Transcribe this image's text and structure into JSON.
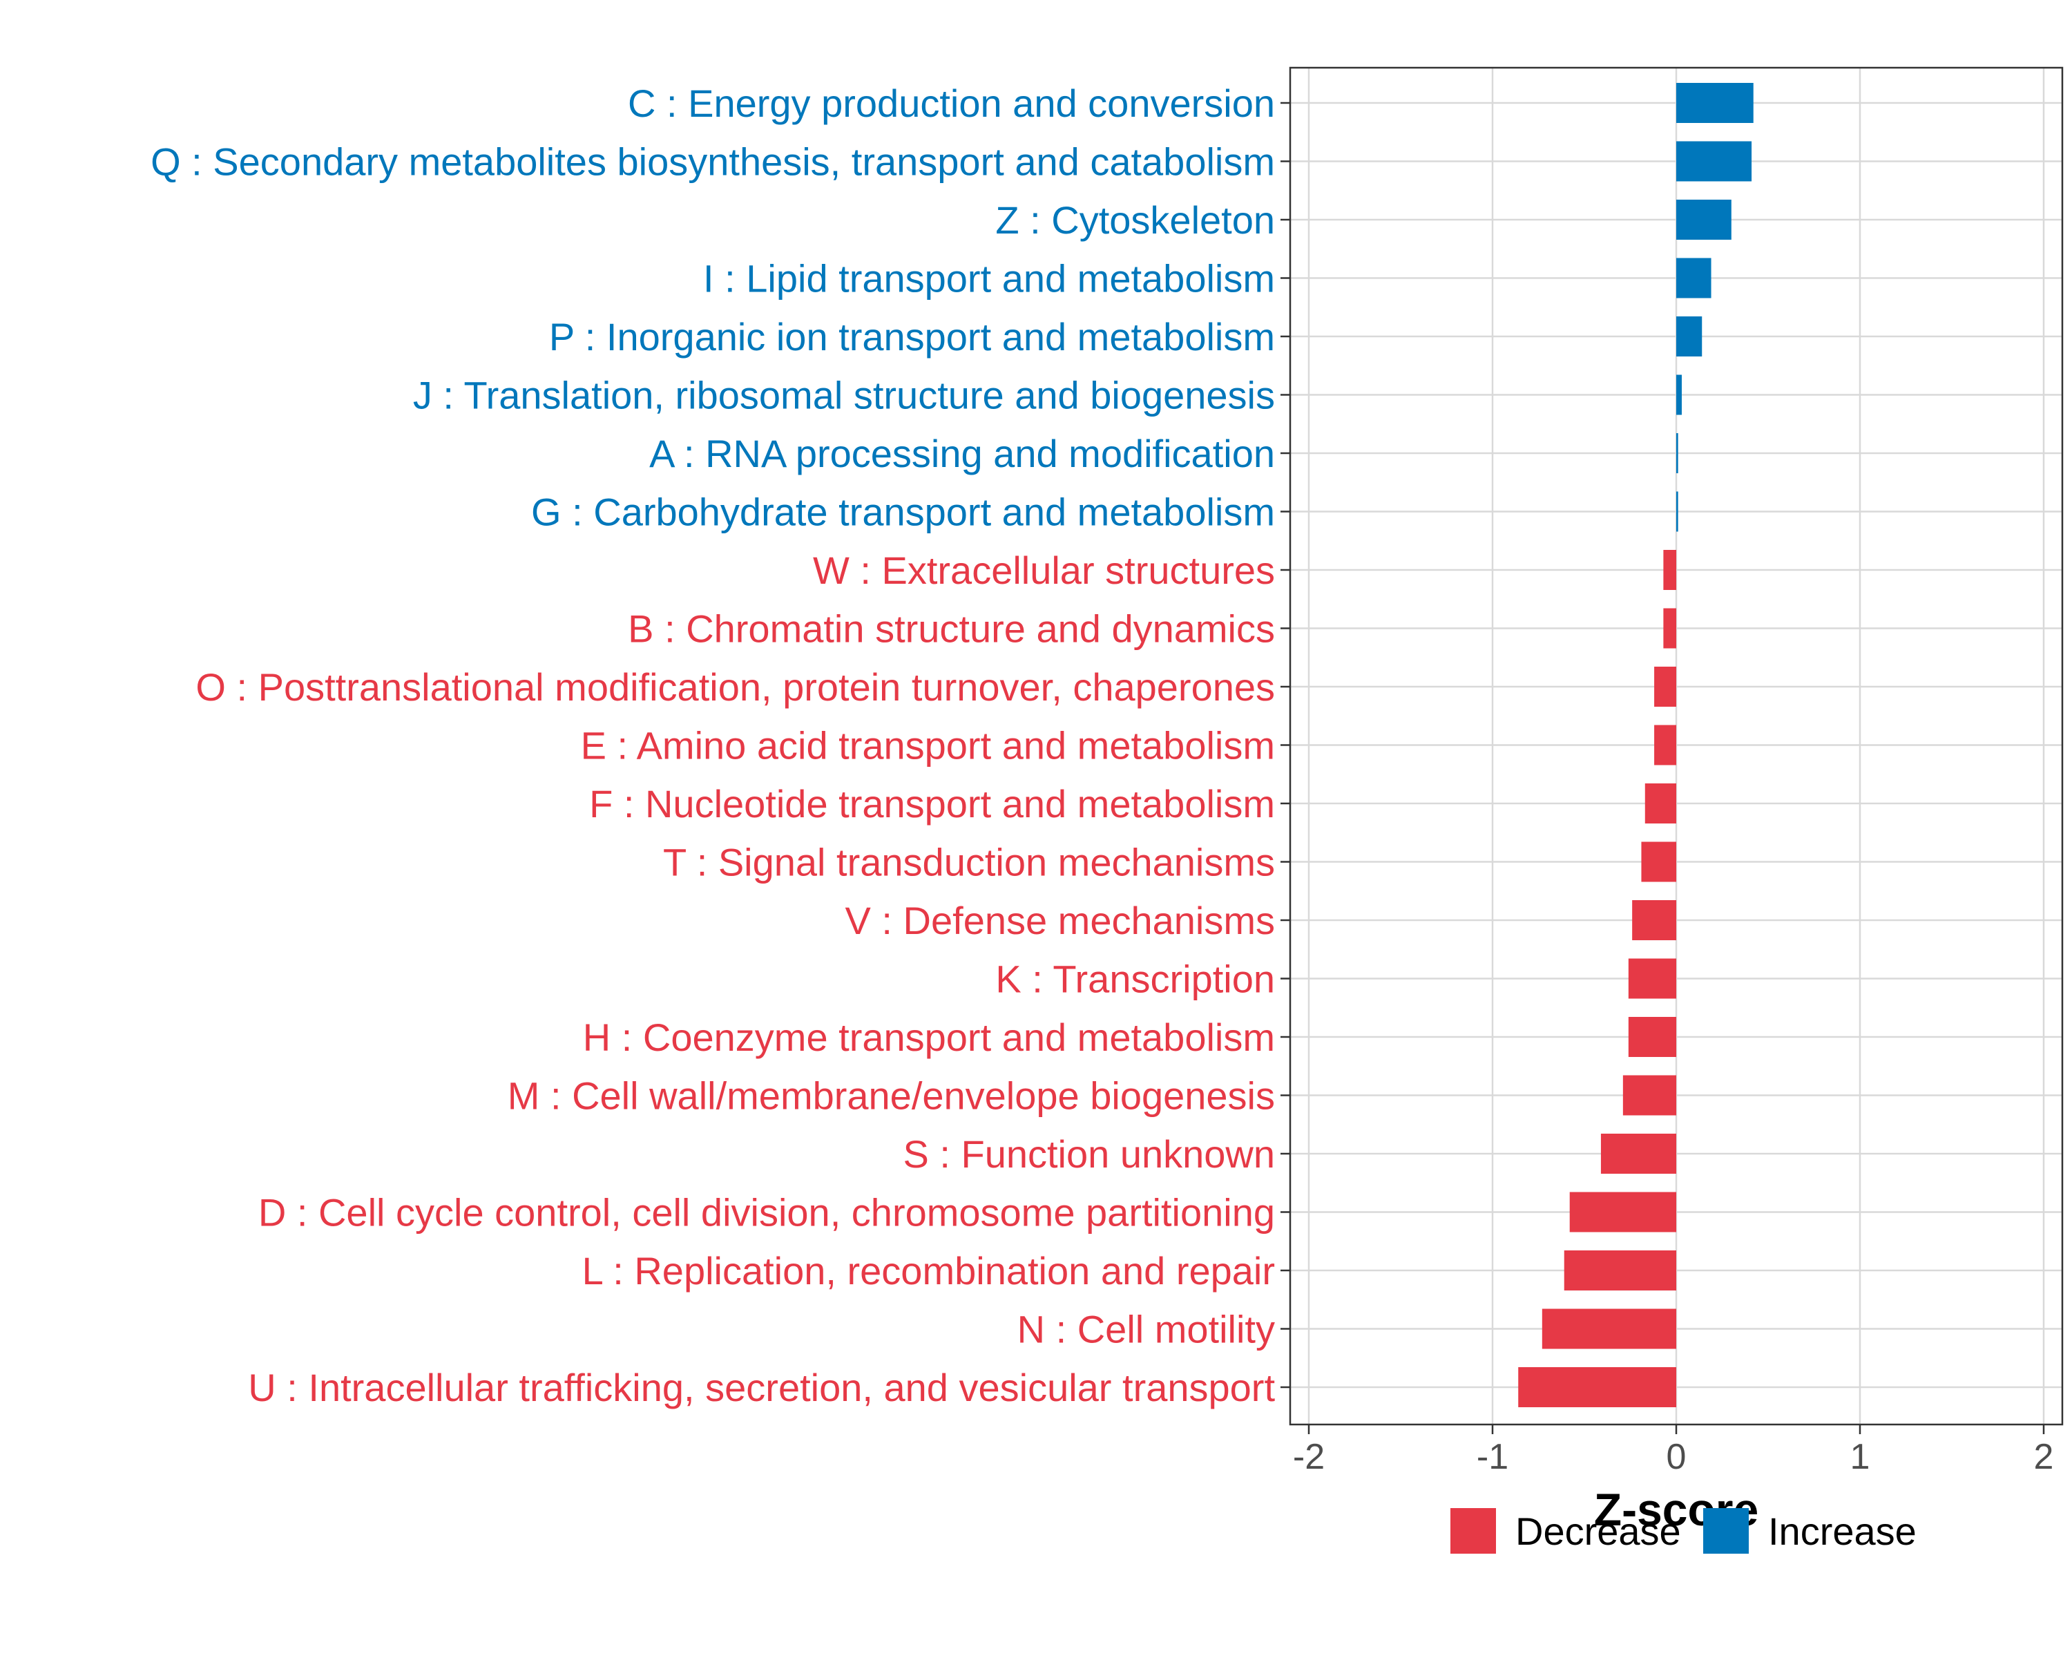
{
  "chart_data": {
    "type": "bar",
    "orientation": "horizontal",
    "title": "",
    "xlabel": "Z-score",
    "ylabel": "",
    "xlim": [
      -2,
      2
    ],
    "xticks": [
      -2,
      -1,
      0,
      1,
      2
    ],
    "xtick_labels": [
      "-2",
      "-1",
      "0",
      "1",
      "2"
    ],
    "grid": true,
    "legend_position": "bottom",
    "colors": {
      "Decrease": "#e63946",
      "Increase": "#0077bb"
    },
    "legend": [
      {
        "name": "Decrease",
        "color": "#e63946"
      },
      {
        "name": "Increase",
        "color": "#0077bb"
      }
    ],
    "categories": [
      {
        "label": "C : Energy production and conversion",
        "value": 0.42,
        "group": "Increase"
      },
      {
        "label": "Q : Secondary metabolites biosynthesis, transport and catabolism",
        "value": 0.41,
        "group": "Increase"
      },
      {
        "label": "Z : Cytoskeleton",
        "value": 0.3,
        "group": "Increase"
      },
      {
        "label": "I : Lipid transport and metabolism",
        "value": 0.19,
        "group": "Increase"
      },
      {
        "label": "P : Inorganic ion transport and metabolism",
        "value": 0.14,
        "group": "Increase"
      },
      {
        "label": "J : Translation, ribosomal structure and biogenesis",
        "value": 0.03,
        "group": "Increase"
      },
      {
        "label": "A : RNA processing and modification",
        "value": 0.01,
        "group": "Increase"
      },
      {
        "label": "G : Carbohydrate transport and metabolism",
        "value": 0.01,
        "group": "Increase"
      },
      {
        "label": "W : Extracellular structures",
        "value": -0.07,
        "group": "Decrease"
      },
      {
        "label": "B : Chromatin structure and dynamics",
        "value": -0.07,
        "group": "Decrease"
      },
      {
        "label": "O : Posttranslational modification, protein turnover, chaperones",
        "value": -0.12,
        "group": "Decrease"
      },
      {
        "label": "E : Amino acid transport and metabolism",
        "value": -0.12,
        "group": "Decrease"
      },
      {
        "label": "F : Nucleotide transport and metabolism",
        "value": -0.17,
        "group": "Decrease"
      },
      {
        "label": "T : Signal transduction mechanisms",
        "value": -0.19,
        "group": "Decrease"
      },
      {
        "label": "V : Defense mechanisms",
        "value": -0.24,
        "group": "Decrease"
      },
      {
        "label": "K : Transcription",
        "value": -0.26,
        "group": "Decrease"
      },
      {
        "label": "H : Coenzyme transport and metabolism",
        "value": -0.26,
        "group": "Decrease"
      },
      {
        "label": "M : Cell wall/membrane/envelope biogenesis",
        "value": -0.29,
        "group": "Decrease"
      },
      {
        "label": "S : Function unknown",
        "value": -0.41,
        "group": "Decrease"
      },
      {
        "label": "D : Cell cycle control, cell division, chromosome partitioning",
        "value": -0.58,
        "group": "Decrease"
      },
      {
        "label": "L : Replication, recombination and repair",
        "value": -0.61,
        "group": "Decrease"
      },
      {
        "label": "N : Cell motility",
        "value": -0.73,
        "group": "Decrease"
      },
      {
        "label": "U : Intracellular trafficking, secretion, and vesicular transport",
        "value": -0.86,
        "group": "Decrease"
      }
    ]
  }
}
